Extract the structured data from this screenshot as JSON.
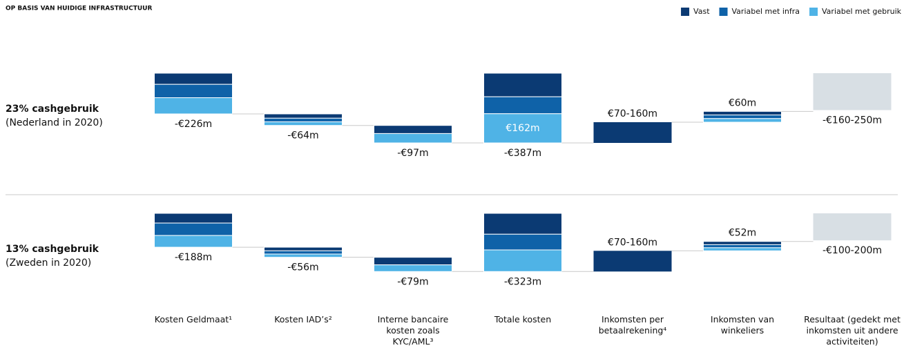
{
  "chart_data": {
    "type": "waterfall",
    "title": "OP BASIS VAN HUIDIGE INFRASTRUCTUUR",
    "categories": [
      "Kosten Geldmaat¹",
      "Kosten IAD’s²",
      "Interne bancaire kosten zoals KYC/AML³",
      "Totale kosten",
      "Inkomsten per betaalrekening⁴",
      "Inkomsten van winkeliers",
      "Resultaat (gedekt met inkomsten uit andere activiteiten)"
    ],
    "series": [
      {
        "name": "Vast",
        "color": "#0b3a73"
      },
      {
        "name": "Variabel met infra",
        "color": "#0f62a8"
      },
      {
        "name": "Variabel met gebruik",
        "color": "#4fb3e6"
      }
    ],
    "result_color": "#d8dfe4",
    "panels": [
      {
        "label": "23% cashgebruik",
        "sublabel": "(Nederland in 2020)",
        "bars": [
          {
            "kind": "cost",
            "values": [
              -62,
              -74,
              -90
            ],
            "value_label": "-€226m"
          },
          {
            "kind": "cost",
            "values": [
              -24,
              -20,
              -20
            ],
            "value_label": "-€64m"
          },
          {
            "kind": "cost",
            "values": [
              -45,
              0,
              -52
            ],
            "value_label": "-€97m"
          },
          {
            "kind": "total",
            "values": [
              -131,
              -94,
              -162
            ],
            "value_label": "-€387m",
            "inner_label": "€162m"
          },
          {
            "kind": "range",
            "values": [
              70,
              160
            ],
            "value_label": "€70-160m"
          },
          {
            "kind": "income",
            "values": [
              20,
              20,
              20
            ],
            "value_label": "€60m"
          },
          {
            "kind": "result",
            "values": [
              -160,
              -250
            ],
            "value_label": "-€160-250m"
          }
        ]
      },
      {
        "label": "13% cashgebruik",
        "sublabel": "(Zweden in 2020)",
        "bars": [
          {
            "kind": "cost",
            "values": [
              -54,
              -69,
              -65
            ],
            "value_label": "-€188m"
          },
          {
            "kind": "cost",
            "values": [
              -20,
              -18,
              -18
            ],
            "value_label": "-€56m"
          },
          {
            "kind": "cost",
            "values": [
              -42,
              0,
              -37
            ],
            "value_label": "-€79m"
          },
          {
            "kind": "total",
            "values": [
              -116,
              -87,
              -120
            ],
            "value_label": "-€323m"
          },
          {
            "kind": "range",
            "values": [
              70,
              160
            ],
            "value_label": "€70-160m"
          },
          {
            "kind": "income",
            "values": [
              18,
              17,
              17
            ],
            "value_label": "€52m"
          },
          {
            "kind": "result",
            "values": [
              -100,
              -200
            ],
            "value_label": "-€100-200m"
          }
        ]
      }
    ]
  }
}
